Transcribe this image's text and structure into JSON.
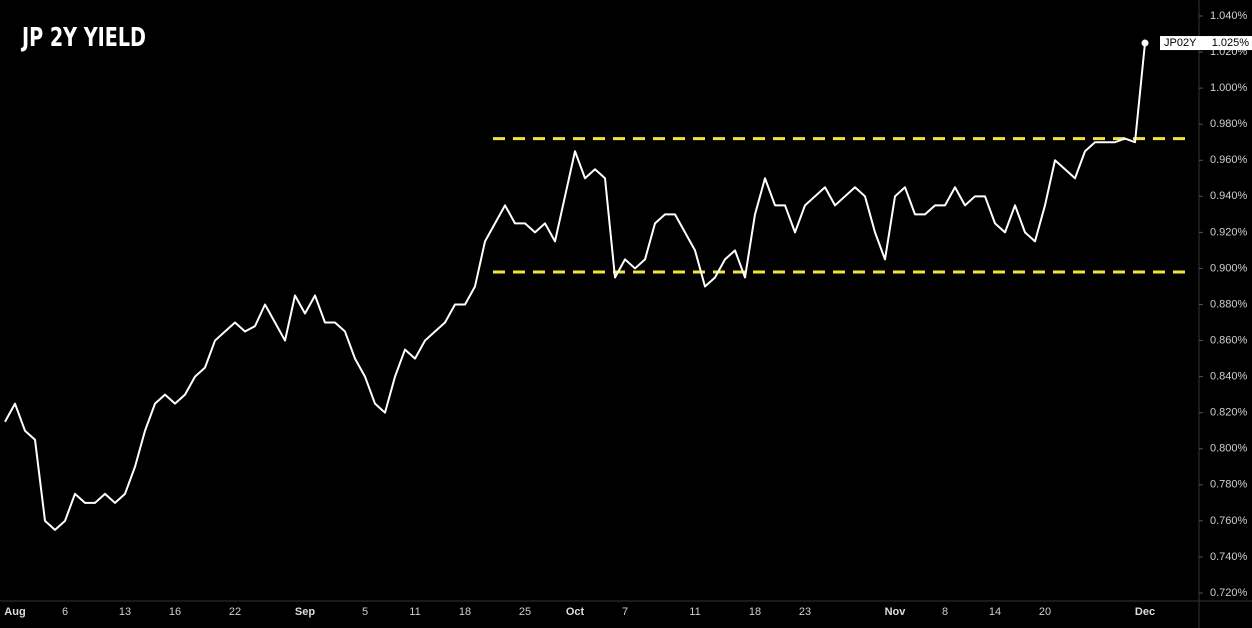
{
  "chart_data": {
    "type": "line",
    "title": "JP 2Y YIELD",
    "categories": [
      null,
      "Aug",
      null,
      null,
      null,
      null,
      "6",
      null,
      null,
      null,
      null,
      null,
      "13",
      null,
      null,
      null,
      null,
      "16",
      null,
      null,
      null,
      null,
      null,
      "22",
      null,
      null,
      null,
      null,
      null,
      null,
      "Sep",
      null,
      null,
      null,
      null,
      null,
      "5",
      null,
      null,
      null,
      null,
      "11",
      null,
      null,
      null,
      null,
      "18",
      null,
      null,
      null,
      null,
      null,
      "25",
      null,
      null,
      null,
      null,
      "Oct",
      null,
      null,
      null,
      null,
      "7",
      null,
      null,
      null,
      null,
      null,
      null,
      "11",
      null,
      null,
      null,
      null,
      null,
      "18",
      null,
      null,
      null,
      null,
      "23",
      null,
      null,
      null,
      null,
      null,
      null,
      null,
      null,
      "Nov",
      null,
      null,
      null,
      null,
      "8",
      null,
      null,
      null,
      null,
      "14",
      null,
      null,
      null,
      null,
      "20",
      null,
      null,
      null,
      null,
      null,
      null,
      null,
      null,
      null,
      "Dec"
    ],
    "series": [
      {
        "name": "JP02Y",
        "color": "#ffffff",
        "values": [
          0.815,
          0.825,
          0.81,
          0.805,
          0.76,
          0.755,
          0.76,
          0.775,
          0.77,
          0.77,
          0.775,
          0.77,
          0.775,
          0.79,
          0.81,
          0.825,
          0.83,
          0.825,
          0.83,
          0.84,
          0.845,
          0.86,
          0.865,
          0.87,
          0.865,
          0.868,
          0.88,
          0.87,
          0.86,
          0.885,
          0.875,
          0.885,
          0.87,
          0.87,
          0.865,
          0.85,
          0.84,
          0.825,
          0.82,
          0.84,
          0.855,
          0.85,
          0.86,
          0.865,
          0.87,
          0.88,
          0.88,
          0.89,
          0.915,
          0.925,
          0.935,
          0.925,
          0.925,
          0.92,
          0.925,
          0.915,
          0.94,
          0.965,
          0.95,
          0.955,
          0.95,
          0.895,
          0.905,
          0.9,
          0.905,
          0.925,
          0.93,
          0.93,
          0.92,
          0.91,
          0.89,
          0.895,
          0.905,
          0.91,
          0.895,
          0.93,
          0.95,
          0.935,
          0.935,
          0.92,
          0.935,
          0.94,
          0.945,
          0.935,
          0.94,
          0.945,
          0.94,
          0.92,
          0.905,
          0.94,
          0.945,
          0.93,
          0.93,
          0.935,
          0.935,
          0.945,
          0.935,
          0.94,
          0.94,
          0.925,
          0.92,
          0.935,
          0.92,
          0.915,
          0.935,
          0.96,
          0.955,
          0.95,
          0.965,
          0.97,
          0.97,
          0.97,
          0.972,
          0.97,
          1.025
        ],
        "value_labels": [
          null,
          null,
          null,
          null,
          null,
          null,
          null,
          null,
          null,
          null,
          null,
          null,
          null,
          null,
          null,
          null,
          null,
          null,
          null,
          null,
          null,
          null,
          null,
          null,
          null,
          null,
          null,
          null,
          null,
          null,
          null,
          null,
          null,
          null,
          null,
          null,
          null,
          null,
          null,
          null,
          null,
          null,
          null,
          null,
          null,
          null,
          null,
          null,
          null,
          null,
          null,
          null,
          null,
          null,
          null,
          null,
          null,
          null,
          null,
          null,
          null,
          null,
          null,
          null,
          null,
          null,
          null,
          null,
          null,
          null,
          null,
          null,
          null,
          null,
          null,
          null,
          null,
          null,
          null,
          null,
          null,
          null,
          null,
          null,
          null,
          null,
          null,
          null,
          null,
          null,
          null,
          null,
          null,
          null,
          null,
          null,
          null,
          null,
          null,
          null,
          null,
          null,
          null,
          null,
          null,
          null,
          null,
          null,
          null,
          null,
          null,
          null,
          null,
          null,
          "1.025%"
        ]
      }
    ],
    "hlines": [
      {
        "value": 0.972,
        "color": "#f0e442"
      },
      {
        "value": 0.898,
        "color": "#f0e442"
      }
    ],
    "ylim": [
      0.72,
      1.04
    ],
    "yticks": [
      {
        "value": 1.04,
        "label": "1.040%"
      },
      {
        "value": 1.02,
        "label": "1.020%"
      },
      {
        "value": 1.0,
        "label": "1.000%"
      },
      {
        "value": 0.98,
        "label": "0.980%"
      },
      {
        "value": 0.96,
        "label": "0.960%"
      },
      {
        "value": 0.94,
        "label": "0.940%"
      },
      {
        "value": 0.92,
        "label": "0.920%"
      },
      {
        "value": 0.9,
        "label": "0.900%"
      },
      {
        "value": 0.88,
        "label": "0.880%"
      },
      {
        "value": 0.86,
        "label": "0.860%"
      },
      {
        "value": 0.84,
        "label": "0.840%"
      },
      {
        "value": 0.82,
        "label": "0.820%"
      },
      {
        "value": 0.8,
        "label": "0.800%"
      },
      {
        "value": 0.78,
        "label": "0.780%"
      },
      {
        "value": 0.76,
        "label": "0.760%"
      },
      {
        "value": 0.74,
        "label": "0.740%"
      },
      {
        "value": 0.72,
        "label": "0.720%"
      }
    ],
    "grid": false
  }
}
